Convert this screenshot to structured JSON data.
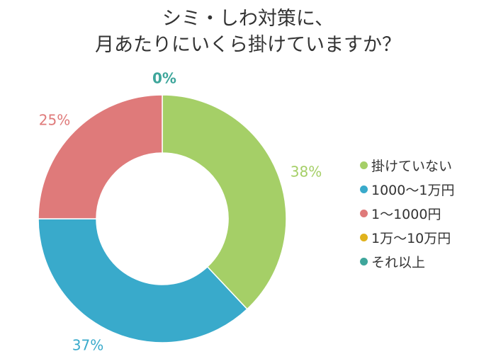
{
  "chart_data": {
    "type": "pie",
    "title": [
      "シミ・しわ対策に、",
      "月あたりにいくら掛けていますか？"
    ],
    "categories": [
      "掛けていない",
      "1000〜1万円",
      "1〜1000円",
      "1万〜10万円",
      "それ以上"
    ],
    "values": [
      38,
      37,
      25,
      0,
      0
    ],
    "labels": [
      "38%",
      "37%",
      "25%",
      "0%",
      ""
    ],
    "colors": [
      "#a5cf67",
      "#39aacb",
      "#df7a7a",
      "#e0b21c",
      "#3ea69b"
    ],
    "label_colors": [
      "#a5cf67",
      "#39aacb",
      "#df7a7a",
      "#3ea69b",
      "#3ea69b"
    ],
    "style": "donut",
    "legend": "right"
  }
}
